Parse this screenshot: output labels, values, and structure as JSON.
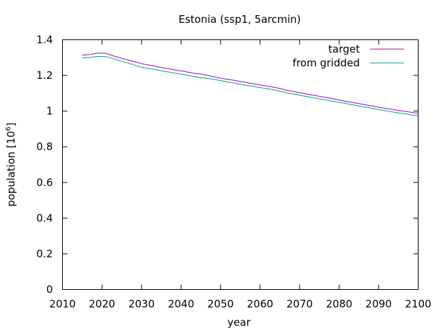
{
  "chart_data": {
    "type": "line",
    "title": "Estonia (ssp1, 5arcmin)",
    "xlabel": "year",
    "ylabel": "population [10",
    "ylabel_exponent": "6",
    "ylabel_suffix": "]",
    "xlim": [
      2010,
      2100
    ],
    "ylim": [
      0,
      1.4
    ],
    "xticks": [
      2010,
      2020,
      2030,
      2040,
      2050,
      2060,
      2070,
      2080,
      2090,
      2100
    ],
    "yticks": [
      0,
      0.2,
      0.4,
      0.6,
      0.8,
      1,
      1.2,
      1.4
    ],
    "ytick_labels": [
      "0",
      "0.2",
      "0.4",
      "0.6",
      "0.8",
      "1",
      "1.2",
      "1.4"
    ],
    "grid": false,
    "legend_position": "top-right",
    "series": [
      {
        "name": "target",
        "color": "#9400d3",
        "x": [
          2015,
          2017,
          2019,
          2021,
          2023,
          2025,
          2027,
          2029,
          2031,
          2033,
          2035,
          2037,
          2039,
          2041,
          2043,
          2045,
          2047,
          2049,
          2051,
          2053,
          2055,
          2057,
          2059,
          2061,
          2063,
          2065,
          2067,
          2069,
          2071,
          2073,
          2075,
          2077,
          2079,
          2081,
          2083,
          2085,
          2087,
          2089,
          2091,
          2093,
          2095,
          2097,
          2099,
          2100
        ],
        "y": [
          1.314,
          1.317,
          1.325,
          1.324,
          1.309,
          1.296,
          1.284,
          1.272,
          1.261,
          1.254,
          1.244,
          1.237,
          1.229,
          1.222,
          1.213,
          1.208,
          1.199,
          1.19,
          1.181,
          1.174,
          1.166,
          1.158,
          1.151,
          1.143,
          1.136,
          1.127,
          1.116,
          1.108,
          1.099,
          1.091,
          1.083,
          1.075,
          1.067,
          1.058,
          1.05,
          1.042,
          1.034,
          1.026,
          1.018,
          1.011,
          1.004,
          0.998,
          0.991,
          0.989
        ]
      },
      {
        "name": "from gridded",
        "color": "#009e73",
        "x": [
          2015,
          2017,
          2019,
          2021,
          2023,
          2025,
          2027,
          2029,
          2031,
          2033,
          2035,
          2037,
          2039,
          2041,
          2043,
          2045,
          2047,
          2049,
          2051,
          2053,
          2055,
          2057,
          2059,
          2061,
          2063,
          2065,
          2067,
          2069,
          2071,
          2073,
          2075,
          2077,
          2079,
          2081,
          2083,
          2085,
          2087,
          2089,
          2091,
          2093,
          2095,
          2097,
          2099,
          2100
        ],
        "y": [
          1.299,
          1.301,
          1.307,
          1.306,
          1.292,
          1.279,
          1.267,
          1.252,
          1.241,
          1.235,
          1.226,
          1.219,
          1.211,
          1.204,
          1.195,
          1.187,
          1.183,
          1.175,
          1.167,
          1.159,
          1.151,
          1.143,
          1.136,
          1.128,
          1.121,
          1.112,
          1.101,
          1.094,
          1.085,
          1.077,
          1.069,
          1.061,
          1.053,
          1.045,
          1.037,
          1.029,
          1.021,
          1.013,
          1.005,
          0.997,
          0.99,
          0.984,
          0.976,
          0.973
        ]
      }
    ]
  }
}
